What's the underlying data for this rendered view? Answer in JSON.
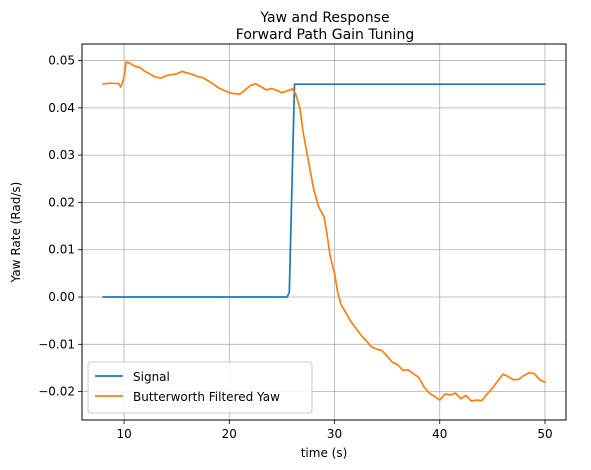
{
  "chart_data": {
    "type": "line",
    "title": "Yaw and Response",
    "subtitle": "Forward Path Gain Tuning",
    "xlabel": "time (s)",
    "ylabel": "Yaw Rate (Rad/s)",
    "xlim": [
      6,
      52
    ],
    "ylim": [
      -0.026,
      0.0535
    ],
    "x_ticks": [
      10,
      20,
      30,
      40,
      50
    ],
    "y_ticks": [
      -0.02,
      -0.01,
      0.0,
      0.01,
      0.02,
      0.03,
      0.04,
      0.05
    ],
    "x_tick_labels": [
      "10",
      "20",
      "30",
      "40",
      "50"
    ],
    "y_tick_labels": [
      "−0.02",
      "−0.01",
      "0.00",
      "0.01",
      "0.02",
      "0.03",
      "0.04",
      "0.05"
    ],
    "grid": true,
    "legend_position": "lower-left",
    "series": [
      {
        "name": "Signal",
        "color": "#1f77b4",
        "points": [
          [
            8,
            0.0
          ],
          [
            25.5,
            0.0
          ],
          [
            25.7,
            0.001
          ],
          [
            26.2,
            0.045
          ],
          [
            50,
            0.045
          ]
        ]
      },
      {
        "name": "Butterworth Filtered Yaw",
        "color": "#ff7f0e",
        "points": [
          [
            8,
            0.045
          ],
          [
            8.5,
            0.0452
          ],
          [
            9,
            0.0452
          ],
          [
            9.5,
            0.0451
          ],
          [
            9.7,
            0.0444
          ],
          [
            10,
            0.0465
          ],
          [
            10.2,
            0.0497
          ],
          [
            10.5,
            0.0495
          ],
          [
            11,
            0.0488
          ],
          [
            11.5,
            0.0485
          ],
          [
            12,
            0.0477
          ],
          [
            12.5,
            0.0471
          ],
          [
            13,
            0.0465
          ],
          [
            13.5,
            0.0463
          ],
          [
            14,
            0.0468
          ],
          [
            14.5,
            0.047
          ],
          [
            15,
            0.0472
          ],
          [
            15.5,
            0.0477
          ],
          [
            16,
            0.0474
          ],
          [
            16.5,
            0.0471
          ],
          [
            17,
            0.0466
          ],
          [
            17.5,
            0.0464
          ],
          [
            18,
            0.0457
          ],
          [
            18.5,
            0.045
          ],
          [
            19,
            0.0442
          ],
          [
            19.5,
            0.0437
          ],
          [
            20,
            0.0432
          ],
          [
            20.5,
            0.043
          ],
          [
            21,
            0.0429
          ],
          [
            21.5,
            0.0438
          ],
          [
            22,
            0.0447
          ],
          [
            22.5,
            0.0451
          ],
          [
            23,
            0.0445
          ],
          [
            23.5,
            0.0438
          ],
          [
            24,
            0.0441
          ],
          [
            24.5,
            0.0437
          ],
          [
            25,
            0.0432
          ],
          [
            25.5,
            0.0436
          ],
          [
            26,
            0.044
          ],
          [
            26.3,
            0.043
          ],
          [
            26.7,
            0.04
          ],
          [
            27,
            0.035
          ],
          [
            27.5,
            0.029
          ],
          [
            28,
            0.023
          ],
          [
            28.5,
            0.019
          ],
          [
            29,
            0.017
          ],
          [
            29.3,
            0.013
          ],
          [
            29.6,
            0.0085
          ],
          [
            30,
            0.005
          ],
          [
            30.3,
            0.001
          ],
          [
            30.6,
            -0.0015
          ],
          [
            31,
            -0.003
          ],
          [
            31.5,
            -0.005
          ],
          [
            32,
            -0.0065
          ],
          [
            32.5,
            -0.008
          ],
          [
            33,
            -0.0092
          ],
          [
            33.5,
            -0.0105
          ],
          [
            34,
            -0.011
          ],
          [
            34.5,
            -0.0113
          ],
          [
            35,
            -0.0125
          ],
          [
            35.5,
            -0.0138
          ],
          [
            36,
            -0.0143
          ],
          [
            36.5,
            -0.0155
          ],
          [
            37,
            -0.0154
          ],
          [
            37.5,
            -0.0162
          ],
          [
            38,
            -0.017
          ],
          [
            38.5,
            -0.019
          ],
          [
            39,
            -0.0203
          ],
          [
            39.5,
            -0.021
          ],
          [
            40,
            -0.0218
          ],
          [
            40.5,
            -0.0205
          ],
          [
            41,
            -0.0207
          ],
          [
            41.5,
            -0.0203
          ],
          [
            42,
            -0.0215
          ],
          [
            42.5,
            -0.0208
          ],
          [
            43,
            -0.022
          ],
          [
            43.5,
            -0.0218
          ],
          [
            44,
            -0.0219
          ],
          [
            44.5,
            -0.0205
          ],
          [
            45,
            -0.0193
          ],
          [
            45.5,
            -0.0178
          ],
          [
            46,
            -0.0163
          ],
          [
            46.5,
            -0.0168
          ],
          [
            47,
            -0.0175
          ],
          [
            47.5,
            -0.0174
          ],
          [
            48,
            -0.0166
          ],
          [
            48.5,
            -0.016
          ],
          [
            49,
            -0.0162
          ],
          [
            49.5,
            -0.0175
          ],
          [
            50,
            -0.018
          ]
        ]
      }
    ]
  }
}
